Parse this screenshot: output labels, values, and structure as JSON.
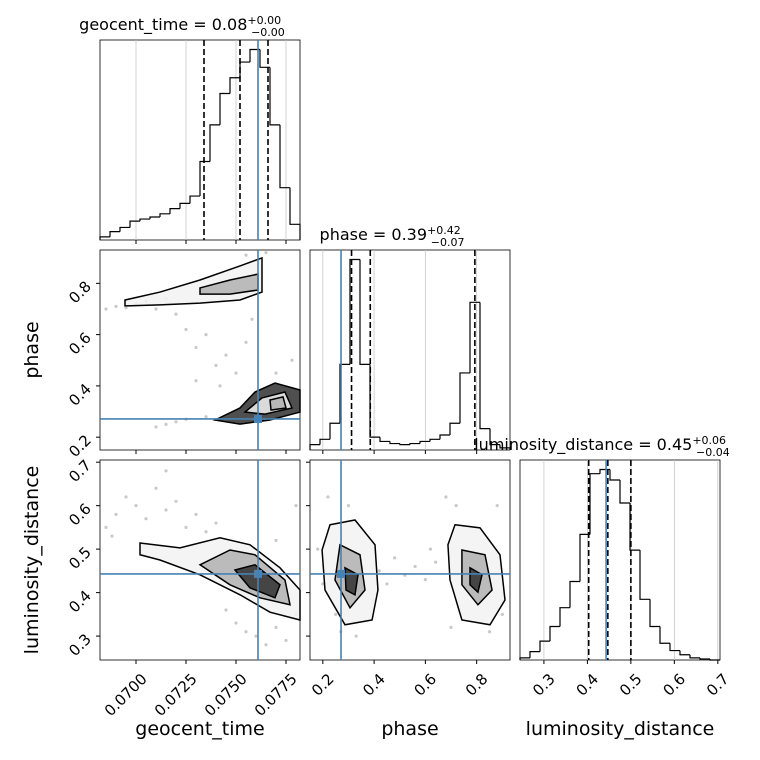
{
  "chart_data": {
    "type": "corner",
    "grid": true,
    "truth_color": "#4682b4",
    "parameters": [
      {
        "label": "geocent_time",
        "title": "geocent_time = 0.08",
        "title_upper": "+0.00",
        "title_lower": "−0.00",
        "lim": [
          0.0682,
          0.0782
        ],
        "ticks": [
          {
            "value": 0.07,
            "label": "0.0700"
          },
          {
            "value": 0.0725,
            "label": "0.0725"
          },
          {
            "value": 0.075,
            "label": "0.0750"
          },
          {
            "value": 0.0775,
            "label": "0.0775"
          }
        ],
        "bins": [
          0.0682,
          0.0687,
          0.0692,
          0.0697,
          0.0702,
          0.0707,
          0.0712,
          0.0717,
          0.0722,
          0.0727,
          0.0732,
          0.0737,
          0.0742,
          0.0747,
          0.0752,
          0.0757,
          0.0762,
          0.0767,
          0.0772,
          0.0777,
          0.0782
        ],
        "counts": [
          3,
          8,
          12,
          18,
          20,
          22,
          25,
          30,
          35,
          42,
          75,
          110,
          140,
          155,
          170,
          182,
          165,
          110,
          50,
          15
        ],
        "quantiles": [
          0.0734,
          0.0752,
          0.0766
        ],
        "truth": 0.0761,
        "pairs": []
      },
      {
        "label": "phase",
        "title": "phase = 0.39",
        "title_upper": "+0.42",
        "title_lower": "−0.07",
        "lim": [
          0.15,
          0.93
        ],
        "ticks": [
          0.2,
          0.4,
          0.6,
          0.8
        ],
        "bins": [
          0.15,
          0.189,
          0.228,
          0.267,
          0.306,
          0.345,
          0.384,
          0.423,
          0.462,
          0.501,
          0.54,
          0.579,
          0.618,
          0.657,
          0.696,
          0.735,
          0.774,
          0.813,
          0.852,
          0.891,
          0.93
        ],
        "counts": [
          5,
          10,
          25,
          80,
          178,
          80,
          12,
          8,
          6,
          5,
          6,
          8,
          10,
          14,
          25,
          72,
          138,
          20,
          5,
          2
        ],
        "quantiles": [
          0.312,
          0.385,
          0.793
        ],
        "truth": 0.271,
        "pairs": [
          {
            "points": [
              [
                0.0685,
                0.7
              ],
              [
                0.069,
                0.71
              ],
              [
                0.0695,
                0.705
              ],
              [
                0.07,
                0.72
              ],
              [
                0.0705,
                0.73
              ],
              [
                0.071,
                0.7
              ],
              [
                0.0715,
                0.74
              ],
              [
                0.072,
                0.68
              ],
              [
                0.0725,
                0.62
              ],
              [
                0.073,
                0.55
              ],
              [
                0.0735,
                0.6
              ],
              [
                0.074,
                0.48
              ],
              [
                0.0745,
                0.52
              ],
              [
                0.075,
                0.45
              ],
              [
                0.0755,
                0.57
              ],
              [
                0.0758,
                0.66
              ],
              [
                0.0742,
                0.4
              ],
              [
                0.073,
                0.42
              ],
              [
                0.072,
                0.26
              ],
              [
                0.071,
                0.24
              ],
              [
                0.0715,
                0.25
              ],
              [
                0.0725,
                0.27
              ],
              [
                0.0735,
                0.28
              ],
              [
                0.0765,
                0.92
              ],
              [
                0.0755,
                0.91
              ],
              [
                0.0778,
                0.5
              ],
              [
                0.077,
                0.45
              ]
            ],
            "contours": [
              {
                "x": [
                  0.06945,
                  0.0712,
                  0.0732,
                  0.0752,
                  0.0763,
                  0.0763,
                  0.0752,
                  0.0732,
                  0.0712,
                  0.06945
                ],
                "y": [
                  0.735,
                  0.766,
                  0.813,
                  0.868,
                  0.899,
                  0.766,
                  0.735,
                  0.723,
                  0.716,
                  0.712
                ]
              },
              {
                "x": [
                  0.0732,
                  0.0747,
                  0.0761,
                  0.0761,
                  0.0747,
                  0.0732
                ],
                "y": [
                  0.782,
                  0.813,
                  0.836,
                  0.774,
                  0.758,
                  0.758
                ]
              },
              {
                "x": [
                  0.07395,
                  0.0752,
                  0.07595,
                  0.07695,
                  0.0782,
                  0.0782,
                  0.0767,
                  0.0752
                ],
                "y": [
                  0.267,
                  0.314,
                  0.376,
                  0.411,
                  0.384,
                  0.298,
                  0.267,
                  0.251
                ]
              },
              {
                "x": [
                  0.07545,
                  0.0763,
                  0.07745,
                  0.0778,
                  0.07645
                ],
                "y": [
                  0.298,
                  0.353,
                  0.376,
                  0.314,
                  0.29
                ]
              },
              {
                "x": [
                  0.0767,
                  0.07735,
                  0.0775,
                  0.07675
                ],
                "y": [
                  0.345,
                  0.357,
                  0.314,
                  0.306
                ]
              }
            ]
          }
        ]
      },
      {
        "label": "luminosity_distance",
        "title": "luminosity_distance = 0.45",
        "title_upper": "+0.06",
        "title_lower": "−0.04",
        "lim": [
          0.245,
          0.705
        ],
        "ticks": [
          0.3,
          0.4,
          0.5,
          0.6,
          0.7
        ],
        "bins": [
          0.245,
          0.268,
          0.291,
          0.314,
          0.337,
          0.36,
          0.383,
          0.406,
          0.429,
          0.452,
          0.475,
          0.498,
          0.521,
          0.544,
          0.567,
          0.59,
          0.613,
          0.636,
          0.659,
          0.682,
          0.705
        ],
        "counts": [
          2,
          8,
          18,
          32,
          50,
          75,
          120,
          178,
          182,
          172,
          150,
          105,
          58,
          32,
          16,
          9,
          5,
          2,
          1,
          0
        ],
        "quantiles": [
          0.403,
          0.447,
          0.5
        ],
        "truth": 0.443,
        "pairs": [
          {
            "points": [
              [
                0.069,
                0.58
              ],
              [
                0.0695,
                0.62
              ],
              [
                0.07,
                0.6
              ],
              [
                0.0705,
                0.57
              ],
              [
                0.071,
                0.64
              ],
              [
                0.0715,
                0.59
              ],
              [
                0.072,
                0.61
              ],
              [
                0.0725,
                0.55
              ],
              [
                0.073,
                0.58
              ],
              [
                0.0735,
                0.54
              ],
              [
                0.074,
                0.56
              ],
              [
                0.0745,
                0.36
              ],
              [
                0.075,
                0.33
              ],
              [
                0.0755,
                0.31
              ],
              [
                0.076,
                0.3
              ],
              [
                0.0765,
                0.28
              ],
              [
                0.077,
                0.32
              ],
              [
                0.0775,
                0.29
              ],
              [
                0.078,
                0.35
              ],
              [
                0.0685,
                0.55
              ],
              [
                0.0715,
                0.68
              ],
              [
                0.078,
                0.6
              ],
              [
                0.077,
                0.52
              ],
              [
                0.0688,
                0.53
              ]
            ],
            "contours": [
              {
                "x": [
                  0.0702,
                  0.0722,
                  0.0742,
                  0.0757,
                  0.0772,
                  0.0782,
                  0.0782,
                  0.0767,
                  0.0752,
                  0.0732,
                  0.0712,
                  0.0702
                ],
                "y": [
                  0.514,
                  0.503,
                  0.526,
                  0.51,
                  0.457,
                  0.406,
                  0.337,
                  0.355,
                  0.395,
                  0.441,
                  0.475,
                  0.487
                ]
              },
              {
                "x": [
                  0.0732,
                  0.0747,
                  0.07595,
                  0.07745,
                  0.0777,
                  0.0762,
                  0.0747
                ],
                "y": [
                  0.464,
                  0.498,
                  0.487,
                  0.429,
                  0.372,
                  0.388,
                  0.418
                ]
              },
              {
                "x": [
                  0.07495,
                  0.07595,
                  0.0772,
                  0.07695,
                  0.0757
                ],
                "y": [
                  0.452,
                  0.464,
                  0.418,
                  0.388,
                  0.411
                ]
              }
            ]
          },
          {
            "points": [
              [
                0.18,
                0.5
              ],
              [
                0.2,
                0.42
              ],
              [
                0.22,
                0.62
              ],
              [
                0.25,
                0.35
              ],
              [
                0.3,
                0.6
              ],
              [
                0.33,
                0.3
              ],
              [
                0.42,
                0.45
              ],
              [
                0.45,
                0.42
              ],
              [
                0.48,
                0.48
              ],
              [
                0.52,
                0.44
              ],
              [
                0.56,
                0.46
              ],
              [
                0.6,
                0.43
              ],
              [
                0.64,
                0.47
              ],
              [
                0.68,
                0.62
              ],
              [
                0.7,
                0.32
              ],
              [
                0.72,
                0.6
              ],
              [
                0.88,
                0.6
              ],
              [
                0.9,
                0.35
              ],
              [
                0.85,
                0.31
              ],
              [
                0.4,
                0.38
              ],
              [
                0.27,
                0.31
              ],
              [
                0.62,
                0.5
              ]
            ],
            "contours": [
              {
                "x": [
                  0.228,
                  0.3255,
                  0.4035,
                  0.415,
                  0.392,
                  0.2865,
                  0.2085,
                  0.197
                ],
                "y": [
                  0.556,
                  0.567,
                  0.51,
                  0.406,
                  0.337,
                  0.326,
                  0.406,
                  0.498
                ]
              },
              {
                "x": [
                  0.267,
                  0.345,
                  0.3645,
                  0.306,
                  0.2475
                ],
                "y": [
                  0.51,
                  0.487,
                  0.406,
                  0.365,
                  0.429
                ]
              },
              {
                "x": [
                  0.2865,
                  0.3372,
                  0.3255,
                  0.2904
                ],
                "y": [
                  0.457,
                  0.441,
                  0.395,
                  0.406
                ]
              },
              {
                "x": [
                  0.7155,
                  0.813,
                  0.891,
                  0.9105,
                  0.852,
                  0.7425,
                  0.696,
                  0.688
                ],
                "y": [
                  0.556,
                  0.549,
                  0.487,
                  0.383,
                  0.326,
                  0.337,
                  0.429,
                  0.51
                ]
              },
              {
                "x": [
                  0.7425,
                  0.8325,
                  0.86,
                  0.805,
                  0.7425
                ],
                "y": [
                  0.498,
                  0.487,
                  0.406,
                  0.372,
                  0.418
                ]
              },
              {
                "x": [
                  0.774,
                  0.8208,
                  0.805,
                  0.774
                ],
                "y": [
                  0.457,
                  0.441,
                  0.401,
                  0.418
                ]
              }
            ]
          }
        ]
      }
    ]
  }
}
